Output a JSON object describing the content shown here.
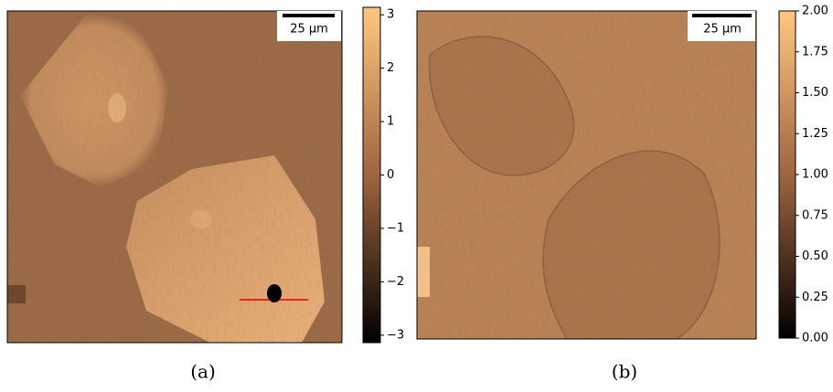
{
  "panels": [
    {
      "caption": "(a)",
      "scale_bar": "25 µm",
      "colorbar": {
        "lim": [
          -3.14,
          3.14
        ],
        "ticks": [
          {
            "value": -3,
            "label": "−3"
          },
          {
            "value": -2,
            "label": "−2"
          },
          {
            "value": -1,
            "label": "−1"
          },
          0,
          1,
          2,
          3
        ]
      }
    },
    {
      "caption": "(b)",
      "scale_bar": "25 µm",
      "colorbar": {
        "lim": [
          0,
          2
        ],
        "ticks": [
          {
            "value": 0,
            "label": "0.00"
          },
          {
            "value": 0.25,
            "label": "0.25"
          },
          {
            "value": 0.5,
            "label": "0.50"
          },
          {
            "value": 0.75,
            "label": "0.75"
          },
          {
            "value": 1,
            "label": "1.00"
          },
          {
            "value": 1.25,
            "label": "1.25"
          },
          {
            "value": 1.5,
            "label": "1.50"
          },
          {
            "value": 1.75,
            "label": "1.75"
          },
          {
            "value": 2,
            "label": "2.00"
          }
        ]
      }
    }
  ]
}
